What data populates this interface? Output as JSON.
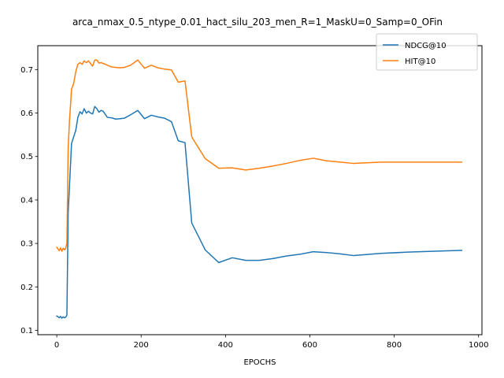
{
  "chart_data": {
    "type": "line",
    "title": "arca_nmax_0.5_ntype_0.01_hact_silu_203_men_R=1_MaskU=0_Samp=0_OFin",
    "xlabel": "EPOCHS",
    "ylabel": "",
    "xlim": [
      -45,
      1008
    ],
    "ylim": [
      0.09,
      0.755
    ],
    "xticks": [
      0,
      200,
      400,
      600,
      800,
      1000
    ],
    "yticks": [
      0.1,
      0.2,
      0.3,
      0.4,
      0.5,
      0.6,
      0.7
    ],
    "xtick_labels": [
      "0",
      "200",
      "400",
      "600",
      "800",
      "1000"
    ],
    "ytick_labels": [
      "0.1",
      "0.2",
      "0.3",
      "0.4",
      "0.5",
      "0.6",
      "0.7"
    ],
    "legend_position": "top-right",
    "grid": false,
    "series": [
      {
        "name": "NDCG@10",
        "color": "#1f77b4",
        "x": [
          0,
          3,
          6,
          9,
          12,
          15,
          18,
          21,
          24,
          27,
          30,
          35,
          40,
          45,
          50,
          55,
          60,
          65,
          70,
          75,
          80,
          85,
          90,
          95,
          100,
          105,
          110,
          120,
          130,
          140,
          150,
          160,
          175,
          192,
          208,
          224,
          240,
          256,
          272,
          288,
          304,
          320,
          352,
          384,
          416,
          448,
          480,
          512,
          544,
          576,
          608,
          640,
          672,
          704,
          768,
          832,
          896,
          960
        ],
        "y": [
          0.133,
          0.131,
          0.129,
          0.132,
          0.128,
          0.131,
          0.129,
          0.13,
          0.135,
          0.37,
          0.43,
          0.53,
          0.545,
          0.56,
          0.59,
          0.603,
          0.598,
          0.61,
          0.6,
          0.604,
          0.6,
          0.598,
          0.615,
          0.61,
          0.602,
          0.606,
          0.604,
          0.59,
          0.589,
          0.586,
          0.587,
          0.588,
          0.596,
          0.606,
          0.587,
          0.595,
          0.591,
          0.588,
          0.58,
          0.536,
          0.532,
          0.347,
          0.285,
          0.256,
          0.267,
          0.261,
          0.261,
          0.265,
          0.271,
          0.275,
          0.281,
          0.279,
          0.276,
          0.272,
          0.277,
          0.28,
          0.282,
          0.284
        ]
      },
      {
        "name": "HIT@10",
        "color": "#ff7f0e",
        "x": [
          0,
          3,
          6,
          9,
          12,
          15,
          18,
          21,
          24,
          27,
          30,
          35,
          40,
          45,
          50,
          55,
          60,
          65,
          70,
          75,
          80,
          85,
          90,
          95,
          100,
          105,
          110,
          120,
          130,
          140,
          150,
          160,
          175,
          192,
          208,
          224,
          240,
          256,
          272,
          288,
          304,
          320,
          352,
          384,
          416,
          448,
          480,
          512,
          544,
          576,
          608,
          640,
          672,
          704,
          768,
          832,
          896,
          960
        ],
        "y": [
          0.291,
          0.287,
          0.283,
          0.29,
          0.282,
          0.289,
          0.285,
          0.288,
          0.3,
          0.52,
          0.58,
          0.655,
          0.668,
          0.695,
          0.712,
          0.716,
          0.712,
          0.72,
          0.716,
          0.72,
          0.714,
          0.708,
          0.722,
          0.722,
          0.715,
          0.716,
          0.714,
          0.71,
          0.706,
          0.705,
          0.704,
          0.705,
          0.71,
          0.722,
          0.703,
          0.71,
          0.704,
          0.701,
          0.699,
          0.671,
          0.674,
          0.545,
          0.495,
          0.473,
          0.474,
          0.469,
          0.473,
          0.478,
          0.484,
          0.491,
          0.496,
          0.49,
          0.487,
          0.484,
          0.487,
          0.487,
          0.487,
          0.487
        ]
      }
    ]
  }
}
